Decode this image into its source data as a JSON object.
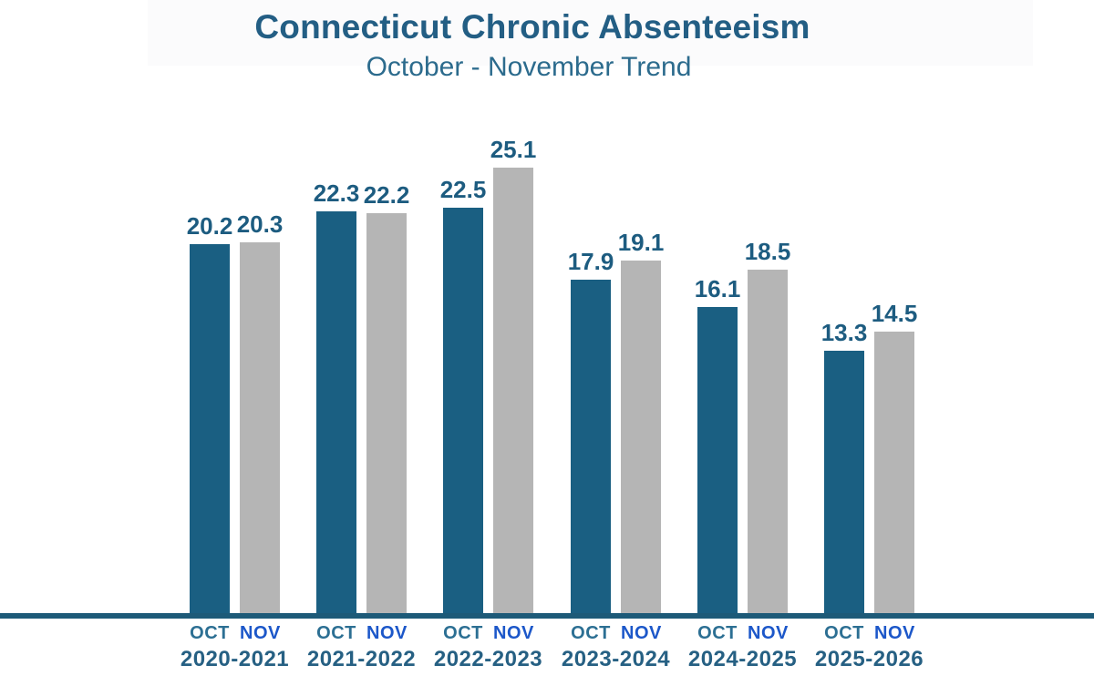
{
  "title": "Connecticut Chronic Absenteeism",
  "subtitle": "October - November Trend",
  "chart_data": {
    "type": "bar",
    "title": "Connecticut Chronic Absenteeism",
    "subtitle": "October - November Trend",
    "categories": [
      "2020-2021",
      "2021-2022",
      "2022-2023",
      "2023-2024",
      "2024-2025",
      "2025-2026"
    ],
    "series": [
      {
        "name": "OCT",
        "values": [
          20.2,
          22.3,
          22.5,
          17.9,
          16.1,
          13.3
        ]
      },
      {
        "name": "NOV",
        "values": [
          20.3,
          22.2,
          25.1,
          19.1,
          18.5,
          14.5
        ]
      }
    ],
    "value_labels_shown": true,
    "xlabel": "",
    "ylabel": "",
    "ylim": [
      0,
      27
    ],
    "grid": false,
    "legend_position": "none",
    "y_axis_shown": false,
    "colors": {
      "oct_bar": "#1a5f82",
      "nov_bar": "#b5b5b5",
      "title": "#235e84",
      "subtitle": "#2c6b8d",
      "value_label": "#1d5c80",
      "oct_month_label": "#2c6f93",
      "nov_month_label": "#1c57c9",
      "year_label": "#266083",
      "baseline": "#1d5a78"
    }
  }
}
